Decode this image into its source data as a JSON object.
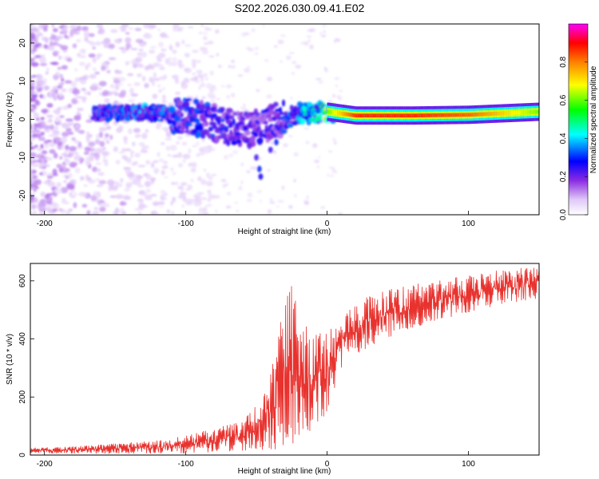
{
  "title": "S202.2026.030.09.41.E02",
  "colors": {
    "snr_line": "#e8322e",
    "background": "#ffffff",
    "axis": "#000000"
  },
  "chart_data": [
    {
      "type": "heatmap",
      "name": "spectrogram",
      "xlabel": "Height of straight line (km)",
      "ylabel": "Frequency (Hz)",
      "xlim": [
        -210,
        150
      ],
      "ylim": [
        -25,
        25
      ],
      "x_ticks": [
        -200,
        -100,
        0,
        100
      ],
      "y_ticks": [
        -20,
        -10,
        0,
        10,
        20
      ],
      "colorbar": {
        "label": "Normalized spectral amplitude",
        "range": [
          0,
          1
        ],
        "ticks": [
          0.0,
          0.2,
          0.4,
          0.6,
          0.8
        ],
        "colormap": [
          "#ffffff",
          "#e0c8f8",
          "#8a2be2",
          "#0000ff",
          "#00ffff",
          "#00ff00",
          "#ffff00",
          "#ff8000",
          "#ff0000",
          "#ff00ff"
        ]
      },
      "ridge": [
        {
          "x": -160,
          "y": 1.5,
          "amp": 0.35
        },
        {
          "x": -130,
          "y": 1.8,
          "amp": 0.4
        },
        {
          "x": -100,
          "y": 1.0,
          "amp": 0.35
        },
        {
          "x": -80,
          "y": -1.0,
          "amp": 0.35
        },
        {
          "x": -60,
          "y": -3.0,
          "amp": 0.3
        },
        {
          "x": -40,
          "y": -1.0,
          "amp": 0.3
        },
        {
          "x": -20,
          "y": 1.5,
          "amp": 0.4
        },
        {
          "x": 0,
          "y": 2.0,
          "amp": 0.6
        },
        {
          "x": 20,
          "y": 1.0,
          "amp": 0.85
        },
        {
          "x": 60,
          "y": 1.0,
          "amp": 0.85
        },
        {
          "x": 100,
          "y": 1.2,
          "amp": 0.8
        },
        {
          "x": 150,
          "y": 2.0,
          "amp": 0.6
        }
      ]
    },
    {
      "type": "line",
      "name": "snr",
      "xlabel": "Height of straight line (km)",
      "ylabel": "SNR (10 * v/v)",
      "xlim": [
        -210,
        150
      ],
      "ylim": [
        0,
        660
      ],
      "x_ticks": [
        -200,
        -100,
        0,
        100
      ],
      "y_ticks": [
        0,
        200,
        400,
        600
      ],
      "envelope": {
        "x": [
          -210,
          -180,
          -150,
          -120,
          -100,
          -80,
          -60,
          -45,
          -35,
          -30,
          -25,
          -20,
          -10,
          0,
          10,
          25,
          50,
          75,
          100,
          125,
          150
        ],
        "low": [
          5,
          5,
          5,
          5,
          5,
          10,
          15,
          15,
          20,
          30,
          30,
          60,
          80,
          150,
          300,
          360,
          420,
          460,
          490,
          520,
          540
        ],
        "high": [
          25,
          30,
          40,
          50,
          70,
          90,
          120,
          200,
          420,
          550,
          600,
          470,
          420,
          420,
          480,
          540,
          580,
          600,
          620,
          640,
          650
        ]
      }
    }
  ]
}
